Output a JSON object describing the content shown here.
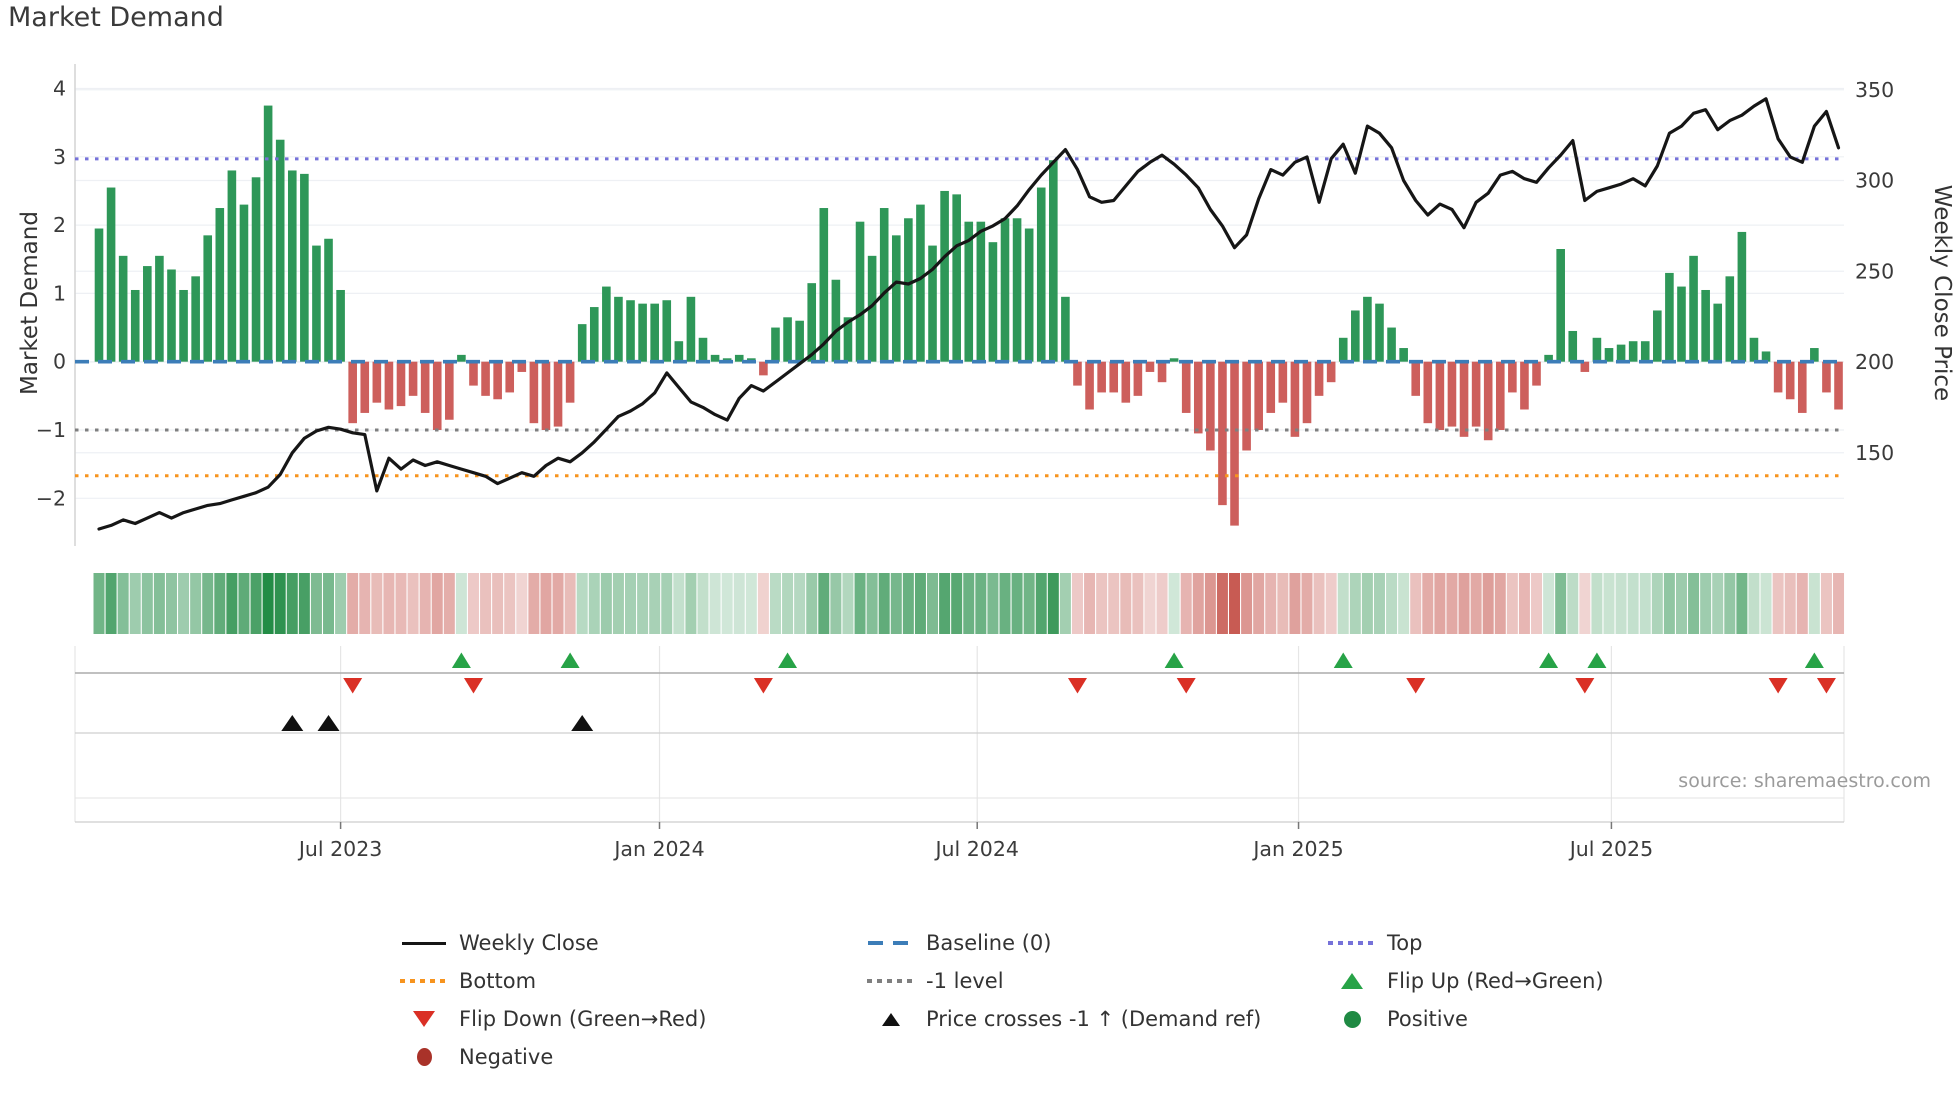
{
  "title": "Market Demand",
  "source_text": "source: sharemaestro.com",
  "axes": {
    "left": {
      "title": "Market Demand",
      "tick_labels": [
        "4",
        "3",
        "2",
        "1",
        "0",
        "−1",
        "−2"
      ],
      "tick_values": [
        4,
        3,
        2,
        1,
        0,
        -1,
        -2
      ]
    },
    "right": {
      "title": "Weekly Close Price",
      "tick_labels": [
        "350",
        "300",
        "250",
        "200",
        "150"
      ],
      "tick_values": [
        350,
        300,
        250,
        200,
        150
      ]
    }
  },
  "colors": {
    "bar_positive": "#2e9758",
    "bar_negative": "#cd5f5c",
    "price_line": "#161616",
    "baseline": "#3c7db8",
    "top_line": "#7672d9",
    "bottom_line": "#f7941e",
    "minus1_line": "#7f7f7f",
    "flip_up": "#27a347",
    "flip_down": "#da3025",
    "price_cross": "#111111",
    "positive_dot": "#1f8a43",
    "negative_dot": "#a93229",
    "heat_green_base": "#238c46",
    "heat_red_base": "#be3e35"
  },
  "legend": {
    "items": [
      {
        "label": "Weekly Close",
        "marker": "line-black"
      },
      {
        "label": "Baseline (0)",
        "marker": "dash-blue"
      },
      {
        "label": "Top",
        "marker": "dot-purple"
      },
      {
        "label": "Bottom",
        "marker": "dot-orange"
      },
      {
        "label": "-1 level",
        "marker": "dot-gray"
      },
      {
        "label": "Flip Up (Red→Green)",
        "marker": "tri-up-green"
      },
      {
        "label": "Flip Down (Green→Red)",
        "marker": "tri-down-red"
      },
      {
        "label": "Price crosses -1 ↑ (Demand ref)",
        "marker": "tri-up-black"
      },
      {
        "label": "Positive",
        "marker": "circle-green"
      },
      {
        "label": "Negative",
        "marker": "circle-darkred"
      }
    ]
  },
  "chart_data": {
    "type": "bar",
    "subtype": "bar+line combo with heatmap strip and event markers",
    "n_weeks": 145,
    "x_ticks": [
      {
        "label": "Jul 2023",
        "week_index": 20.0
      },
      {
        "label": "Jan 2024",
        "week_index": 46.4
      },
      {
        "label": "Jul 2024",
        "week_index": 72.7
      },
      {
        "label": "Jan 2025",
        "week_index": 99.3
      },
      {
        "label": "Jul 2025",
        "week_index": 125.2
      }
    ],
    "left_ylim": [
      -2.7,
      4.35
    ],
    "right_ylim": [
      132,
      355
    ],
    "grid": "horizontal-faint",
    "legend_position": "below-chart",
    "series": [
      {
        "name": "Market Demand",
        "type": "bar",
        "axis": "left",
        "values": [
          1.95,
          2.55,
          1.55,
          1.05,
          1.4,
          1.55,
          1.35,
          1.05,
          1.25,
          1.85,
          2.25,
          2.8,
          2.3,
          2.7,
          3.75,
          3.25,
          2.8,
          2.75,
          1.7,
          1.8,
          1.05,
          -0.9,
          -0.75,
          -0.6,
          -0.7,
          -0.65,
          -0.5,
          -0.75,
          -1.0,
          -0.85,
          0.1,
          -0.35,
          -0.5,
          -0.55,
          -0.45,
          -0.15,
          -0.9,
          -1.0,
          -0.95,
          -0.6,
          0.55,
          0.8,
          1.1,
          0.95,
          0.9,
          0.85,
          0.85,
          0.9,
          0.3,
          0.95,
          0.35,
          0.1,
          0.05,
          0.1,
          0.05,
          -0.2,
          0.5,
          0.65,
          0.6,
          1.15,
          2.25,
          1.2,
          0.65,
          2.05,
          1.55,
          2.25,
          1.85,
          2.1,
          2.3,
          1.7,
          2.5,
          2.45,
          2.05,
          2.05,
          1.75,
          2.1,
          2.1,
          1.95,
          2.55,
          2.95,
          0.95,
          -0.35,
          -0.7,
          -0.45,
          -0.45,
          -0.6,
          -0.5,
          -0.15,
          -0.3,
          0.05,
          -0.75,
          -1.05,
          -1.3,
          -2.1,
          -2.4,
          -1.3,
          -1.0,
          -0.75,
          -0.6,
          -1.1,
          -0.9,
          -0.5,
          -0.3,
          0.35,
          0.75,
          0.95,
          0.85,
          0.5,
          0.2,
          -0.5,
          -0.9,
          -1.0,
          -0.95,
          -1.1,
          -0.95,
          -1.15,
          -1.0,
          -0.45,
          -0.7,
          -0.35,
          0.1,
          1.65,
          0.45,
          -0.15,
          0.35,
          0.2,
          0.25,
          0.3,
          0.3,
          0.75,
          1.3,
          1.1,
          1.55,
          1.05,
          0.85,
          1.25,
          1.9,
          0.35,
          0.15,
          -0.45,
          -0.55,
          -0.75,
          0.2,
          -0.45,
          -0.7
        ]
      },
      {
        "name": "Weekly Close",
        "type": "line",
        "axis": "right",
        "values": [
          108,
          110,
          113,
          111,
          114,
          117,
          114,
          117,
          119,
          121,
          122,
          124,
          126,
          128,
          131,
          138,
          150,
          158,
          162,
          164,
          163,
          161,
          160,
          129,
          147,
          141,
          146,
          143,
          145,
          143,
          141,
          139,
          137,
          133,
          136,
          139,
          137,
          143,
          147,
          145,
          150,
          156,
          163,
          170,
          173,
          177,
          183,
          194,
          186,
          178,
          175,
          171,
          168,
          180,
          187,
          184,
          189,
          194,
          199,
          204,
          210,
          217,
          222,
          226,
          231,
          238,
          244,
          243,
          246,
          251,
          258,
          264,
          267,
          272,
          275,
          279,
          286,
          295,
          303,
          310,
          317,
          306,
          291,
          288,
          289,
          297,
          305,
          310,
          314,
          309,
          303,
          296,
          284,
          275,
          263,
          270,
          290,
          306,
          303,
          310,
          313,
          288,
          312,
          320,
          304,
          330,
          326,
          318,
          300,
          289,
          281,
          287,
          284,
          274,
          288,
          293,
          303,
          305,
          301,
          299,
          307,
          314,
          322,
          289,
          294,
          296,
          298,
          301,
          297,
          308,
          326,
          330,
          337,
          339,
          328,
          333,
          336,
          341,
          345,
          323,
          313,
          310,
          330,
          338,
          318
        ]
      }
    ],
    "reference_lines": [
      {
        "name": "Top",
        "axis": "left",
        "value": 2.97,
        "style": "dotted",
        "color": "#7672d9"
      },
      {
        "name": "Baseline (0)",
        "axis": "left",
        "value": 0,
        "style": "dashed",
        "color": "#3c7db8"
      },
      {
        "name": "-1 level",
        "axis": "left",
        "value": -1,
        "style": "dotted",
        "color": "#7f7f7f"
      },
      {
        "name": "Bottom",
        "axis": "left",
        "value": -1.67,
        "style": "dotted",
        "color": "#f7941e"
      }
    ],
    "heatmap_strip": {
      "description": "weekly demand sign/intensity strip",
      "derived_from": "Market Demand"
    },
    "markers": {
      "flip_up": {
        "label": "Flip Up (Red→Green)",
        "week_indices": [
          30,
          39,
          57,
          89,
          103,
          120,
          124,
          142
        ]
      },
      "flip_down": {
        "label": "Flip Down (Green→Red)",
        "week_indices": [
          21,
          31,
          55,
          81,
          90,
          109,
          123,
          139,
          143
        ]
      },
      "price_cross": {
        "label": "Price crosses -1 ↑ (Demand ref)",
        "week_indices": [
          16,
          19,
          40
        ]
      }
    }
  }
}
